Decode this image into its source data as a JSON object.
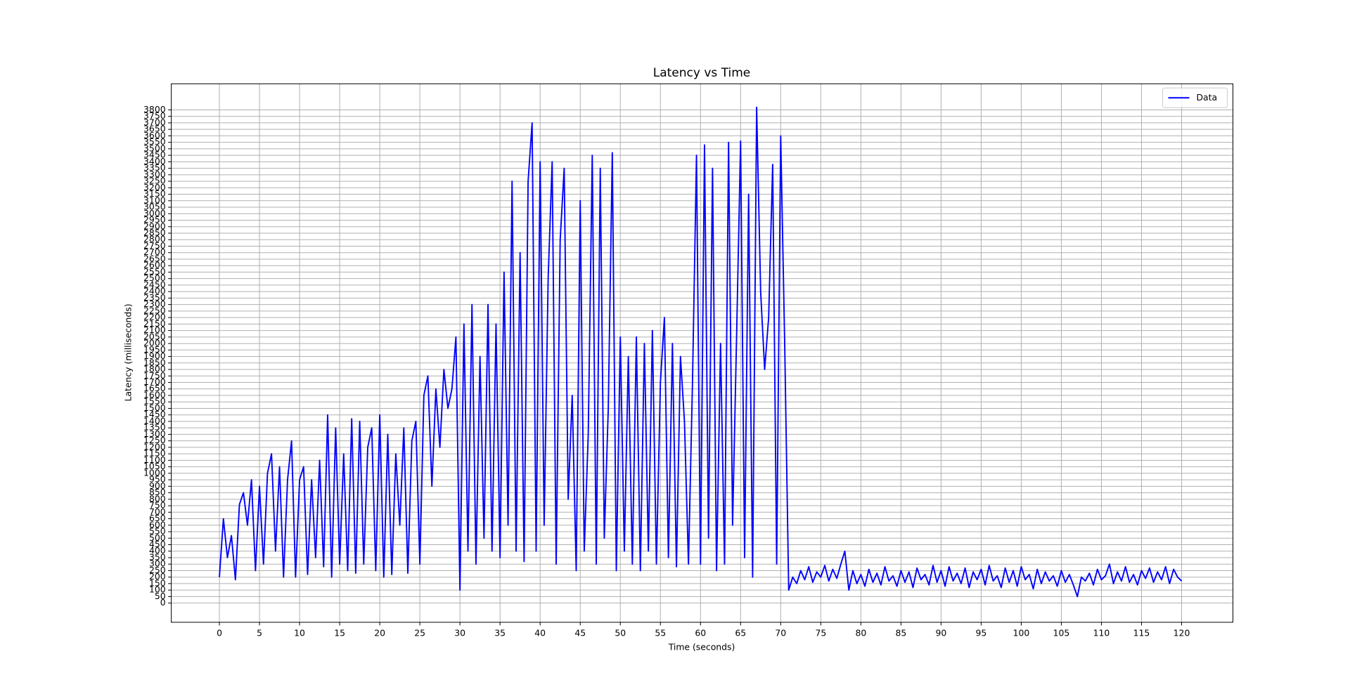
{
  "chart_data": {
    "type": "line",
    "title": "Latency vs Time",
    "x_label": "Time (seconds)",
    "y_label": "Latency (milliseconds)",
    "x": [
      0,
      0.5,
      1,
      1.5,
      2,
      2.5,
      3,
      3.5,
      4,
      4.5,
      5,
      5.5,
      6,
      6.5,
      7,
      7.5,
      8,
      8.5,
      9,
      9.5,
      10,
      10.5,
      11,
      11.5,
      12,
      12.5,
      13,
      13.5,
      14,
      14.5,
      15,
      15.5,
      16,
      16.5,
      17,
      17.5,
      18,
      18.5,
      19,
      19.5,
      20,
      20.5,
      21,
      21.5,
      22,
      22.5,
      23,
      23.5,
      24,
      24.5,
      25,
      25.5,
      26,
      26.5,
      27,
      27.5,
      28,
      28.5,
      29,
      29.5,
      30,
      30.5,
      31,
      31.5,
      32,
      32.5,
      33,
      33.5,
      34,
      34.5,
      35,
      35.5,
      36,
      36.5,
      37,
      37.5,
      38,
      38.5,
      39,
      39.5,
      40,
      40.5,
      41,
      41.5,
      42,
      42.5,
      43,
      43.5,
      44,
      44.5,
      45,
      45.5,
      46,
      46.5,
      47,
      47.5,
      48,
      48.5,
      49,
      49.5,
      50,
      50.5,
      51,
      51.5,
      52,
      52.5,
      53,
      53.5,
      54,
      54.5,
      55,
      55.5,
      56,
      56.5,
      57,
      57.5,
      58,
      58.5,
      59,
      59.5,
      60,
      60.5,
      61,
      61.5,
      62,
      62.5,
      63,
      63.5,
      64,
      64.5,
      65,
      65.5,
      66,
      66.5,
      67,
      67.5,
      68,
      68.5,
      69,
      69.5,
      70,
      70.5,
      71,
      71.5,
      72,
      72.5,
      73,
      73.5,
      74,
      74.5,
      75,
      75.5,
      76,
      76.5,
      77,
      77.5,
      78,
      78.5,
      79,
      79.5,
      80,
      80.5,
      81,
      81.5,
      82,
      82.5,
      83,
      83.5,
      84,
      84.5,
      85,
      85.5,
      86,
      86.5,
      87,
      87.5,
      88,
      88.5,
      89,
      89.5,
      90,
      90.5,
      91,
      91.5,
      92,
      92.5,
      93,
      93.5,
      94,
      94.5,
      95,
      95.5,
      96,
      96.5,
      97,
      97.5,
      98,
      98.5,
      99,
      99.5,
      100,
      100.5,
      101,
      101.5,
      102,
      102.5,
      103,
      103.5,
      104,
      104.5,
      105,
      105.5,
      106,
      106.5,
      107,
      107.5,
      108,
      108.5,
      109,
      109.5,
      110,
      110.5,
      111,
      111.5,
      112,
      112.5,
      113,
      113.5,
      114,
      114.5,
      115,
      115.5,
      116,
      116.5,
      117,
      117.5,
      118,
      118.5,
      119,
      119.5,
      120
    ],
    "series": [
      {
        "name": "Data",
        "color": "#0000ff",
        "values": [
          200,
          650,
          350,
          520,
          180,
          760,
          850,
          600,
          950,
          250,
          900,
          300,
          1000,
          1150,
          400,
          1050,
          200,
          950,
          1250,
          200,
          950,
          1050,
          220,
          950,
          350,
          1100,
          280,
          1450,
          200,
          1350,
          300,
          1150,
          250,
          1420,
          230,
          1400,
          300,
          1200,
          1350,
          250,
          1450,
          200,
          1300,
          220,
          1150,
          600,
          1350,
          230,
          1250,
          1400,
          300,
          1600,
          1750,
          900,
          1650,
          1200,
          1800,
          1500,
          1650,
          2050,
          100,
          2150,
          400,
          2300,
          300,
          1900,
          500,
          2300,
          400,
          2150,
          350,
          2550,
          600,
          3250,
          400,
          2700,
          320,
          3250,
          3700,
          400,
          3400,
          600,
          2500,
          3400,
          300,
          2800,
          3350,
          800,
          1600,
          250,
          3100,
          400,
          1300,
          3450,
          300,
          3350,
          500,
          1500,
          3470,
          250,
          2050,
          400,
          1900,
          300,
          2050,
          250,
          2000,
          400,
          2100,
          300,
          1700,
          2200,
          350,
          2000,
          280,
          1900,
          1400,
          300,
          1700,
          3450,
          300,
          3530,
          500,
          3350,
          250,
          2000,
          300,
          3550,
          600,
          2050,
          3560,
          350,
          3150,
          200,
          3820,
          2400,
          1800,
          2200,
          3380,
          300,
          3600,
          2000,
          100,
          200,
          150,
          250,
          180,
          280,
          160,
          240,
          200,
          290,
          170,
          260,
          190,
          300,
          400,
          100,
          250,
          150,
          220,
          130,
          260,
          160,
          230,
          140,
          280,
          170,
          210,
          130,
          250,
          160,
          240,
          120,
          270,
          180,
          220,
          140,
          290,
          160,
          250,
          130,
          280,
          170,
          230,
          150,
          270,
          120,
          240,
          180,
          260,
          140,
          290,
          170,
          210,
          120,
          270,
          160,
          250,
          130,
          280,
          180,
          220,
          110,
          260,
          150,
          240,
          170,
          210,
          130,
          250,
          160,
          220,
          140,
          50,
          200,
          170,
          230,
          140,
          260,
          180,
          210,
          300,
          150,
          240,
          170,
          280,
          160,
          220,
          140,
          250,
          190,
          270,
          160,
          240,
          180,
          280,
          150,
          260,
          200,
          170
        ]
      }
    ],
    "xlim": [
      -6,
      126.4
    ],
    "ylim": [
      -148,
      4001
    ],
    "xticks": [
      0,
      5,
      10,
      15,
      20,
      25,
      30,
      35,
      40,
      45,
      50,
      55,
      60,
      65,
      70,
      75,
      80,
      85,
      90,
      95,
      100,
      105,
      110,
      115,
      120
    ],
    "yticks": [
      0,
      50,
      100,
      150,
      200,
      250,
      300,
      350,
      400,
      450,
      500,
      550,
      600,
      650,
      700,
      750,
      800,
      850,
      900,
      950,
      1000,
      1050,
      1100,
      1150,
      1200,
      1250,
      1300,
      1350,
      1400,
      1450,
      1500,
      1550,
      1600,
      1650,
      1700,
      1750,
      1800,
      1850,
      1900,
      1950,
      2000,
      2050,
      2100,
      2150,
      2200,
      2250,
      2300,
      2350,
      2400,
      2450,
      2500,
      2550,
      2600,
      2650,
      2700,
      2750,
      2800,
      2850,
      2900,
      2950,
      3000,
      3050,
      3100,
      3150,
      3200,
      3250,
      3300,
      3350,
      3400,
      3450,
      3500,
      3550,
      3600,
      3650,
      3700,
      3750,
      3800
    ],
    "grid": true,
    "legend": "upper right"
  }
}
